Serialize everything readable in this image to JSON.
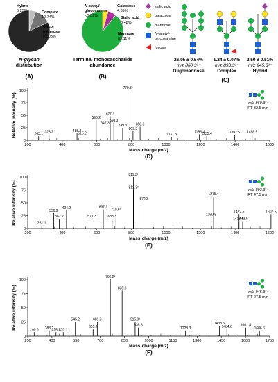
{
  "palette": {
    "glcnac": "#1f5fd6",
    "mannose": "#22b14c",
    "galactose": "#ffe11a",
    "sialic": "#a23aa5",
    "fucose": "#e02020",
    "trace": "#000000"
  },
  "pie_a": {
    "label": "(A)",
    "caption_line1": "N-glycan",
    "caption_line2": "distribution",
    "slices": [
      {
        "name": "Hybrid",
        "value": 5.23,
        "label": "Hybrid",
        "pct": "5.23%",
        "color": "#bdbdbd"
      },
      {
        "name": "Complex",
        "value": 12.74,
        "label": "Complex",
        "pct": "12.74%",
        "color": "#757575"
      },
      {
        "name": "Oligomannose",
        "value": 82.03,
        "label": "Oligo-",
        "label2": "mannose",
        "pct": "82.03%",
        "color": "#262626"
      }
    ]
  },
  "pie_b": {
    "label": "(B)",
    "caption_line1": "Terminal monosaccharide",
    "caption_line2": "abundance",
    "slices": [
      {
        "name": "Mannose",
        "value": 89.11,
        "label": "Mannose",
        "pct": "89.11%",
        "color": "#1fae3e"
      },
      {
        "name": "Galactose",
        "value": 4.39,
        "label": "Galactose",
        "pct": "4.39%",
        "color": "#ffe11a"
      },
      {
        "name": "Sialic acid",
        "value": 6.48,
        "label": "Sialic acid",
        "pct": "6.48%",
        "color": "#b02aa0"
      },
      {
        "name": "N-acetylglucosamine",
        "value": 0.01,
        "label": "N-acetyl-",
        "label2": "glucosamine",
        "pct": "<0.01%",
        "color": "#1f5fd6"
      }
    ]
  },
  "legend": {
    "items": [
      {
        "name": "sialic acid",
        "shape": "diamond",
        "color": "#a23aa5"
      },
      {
        "name": "galactose",
        "shape": "circle",
        "color": "#ffe11a"
      },
      {
        "name": "mannose",
        "shape": "circle",
        "color": "#22b14c"
      },
      {
        "name": "N-acetyl-",
        "name2": "glucosamine",
        "shape": "square",
        "color": "#1f5fd6"
      },
      {
        "name": "fucose",
        "shape": "triangle",
        "color": "#e02020"
      }
    ]
  },
  "panel_c": {
    "label": "(C)",
    "types": [
      {
        "pct": "26.05 ± 0.54%",
        "mz": "m/z 860.3³⁻",
        "name": "Oligomannose"
      },
      {
        "pct": "1.24 ± 0.07%",
        "mz": "m/z 893.3³⁻",
        "name": "Complex"
      },
      {
        "pct": "2.50 ± 0.51%",
        "mz": "m/z 945.3³⁻",
        "name": "Hybrid"
      }
    ]
  },
  "chart_data": [
    {
      "type": "line",
      "panel": "(D)",
      "xlabel": "Mass:charge (m/z)",
      "ylabel": "Relative intensity (%)",
      "xlim": [
        200,
        1600
      ],
      "ylim": [
        0,
        100
      ],
      "xticks": [
        200,
        400,
        600,
        800,
        1000,
        1200,
        1400,
        1600
      ],
      "yticks": [
        0,
        25,
        50,
        75,
        100
      ],
      "precursor": "m/z 860.3³⁻",
      "rt": "RT 32.5 min",
      "peaks": [
        {
          "x": 263.1,
          "y": 8,
          "label": "263.1"
        },
        {
          "x": 323.2,
          "y": 12,
          "label": "323.2"
        },
        {
          "x": 485.2,
          "y": 14,
          "label": "485.2"
        },
        {
          "x": 515.2,
          "y": 9,
          "label": "515.2"
        },
        {
          "x": 596.2,
          "y": 40,
          "label": "596.2"
        },
        {
          "x": 647.3,
          "y": 30,
          "label": "647.3"
        },
        {
          "x": 677.3,
          "y": 48,
          "label": "677.3"
        },
        {
          "x": 698.3,
          "y": 35,
          "label": "698.3"
        },
        {
          "x": 749.3,
          "y": 25,
          "label": "749.3"
        },
        {
          "x": 779.3,
          "y": 100,
          "label": "779.3²"
        },
        {
          "x": 809.3,
          "y": 18,
          "label": "809.3"
        },
        {
          "x": 850.3,
          "y": 27,
          "label": "850.3"
        },
        {
          "x": 1031.3,
          "y": 7,
          "label": "1031.3"
        },
        {
          "x": 1193.4,
          "y": 12,
          "label": "1193.4"
        },
        {
          "x": 1235.4,
          "y": 8,
          "label": "1235.4"
        },
        {
          "x": 1397.5,
          "y": 11,
          "label": "1397.5"
        },
        {
          "x": 1498.5,
          "y": 12,
          "label": "1498.5"
        }
      ]
    },
    {
      "type": "line",
      "panel": "(E)",
      "xlabel": "Mass:charge (m/z)",
      "ylabel": "Relative intensity (%)",
      "xlim": [
        200,
        1600
      ],
      "ylim": [
        0,
        100
      ],
      "xticks": [
        200,
        400,
        600,
        800,
        1000,
        1200,
        1400,
        1600
      ],
      "yticks": [
        0,
        25,
        50,
        75,
        100
      ],
      "precursor": "m/z 893.3³⁻",
      "rt": "RT 47.5 min",
      "peaks": [
        {
          "x": 281.1,
          "y": 6,
          "label": "281.1"
        },
        {
          "x": 350.2,
          "y": 30,
          "label": "350.2"
        },
        {
          "x": 382.2,
          "y": 19,
          "label": "382.2"
        },
        {
          "x": 424.2,
          "y": 35,
          "label": "424.2"
        },
        {
          "x": 571.3,
          "y": 19,
          "label": "571.3"
        },
        {
          "x": 637.3,
          "y": 37,
          "label": "637.3"
        },
        {
          "x": 688.3,
          "y": 19,
          "label": "688.3"
        },
        {
          "x": 710.6,
          "y": 32,
          "label": "710.6²"
        },
        {
          "x": 811.3,
          "y": 100,
          "label": "811.3²"
        },
        {
          "x": 812.3,
          "y": 75,
          "label": "812.3²"
        },
        {
          "x": 872.3,
          "y": 53,
          "label": "872.3"
        },
        {
          "x": 1260.5,
          "y": 22,
          "label": "1260.5"
        },
        {
          "x": 1275.4,
          "y": 62,
          "label": "1275.4"
        },
        {
          "x": 1418.5,
          "y": 14,
          "label": "1418.5"
        },
        {
          "x": 1422.5,
          "y": 28,
          "label": "1422.5"
        },
        {
          "x": 1443.5,
          "y": 14,
          "label": "1443.5"
        },
        {
          "x": 1607.5,
          "y": 28,
          "label": "1607.5"
        }
      ]
    },
    {
      "type": "line",
      "panel": "(F)",
      "xlabel": "Mass:charge (m/z)",
      "ylabel": "Relative intensity (%)",
      "xlim": [
        250,
        1750
      ],
      "ylim": [
        0,
        100
      ],
      "xticks": [
        250,
        400,
        550,
        700,
        850,
        1000,
        1150,
        1300,
        1450,
        1600,
        1750
      ],
      "yticks": [
        0,
        25,
        50,
        75,
        100
      ],
      "precursor": "m/z 945.3³⁻",
      "rt": "RT 27.5 min",
      "peaks": [
        {
          "x": 290.0,
          "y": 7,
          "label": "290.0"
        },
        {
          "x": 383.2,
          "y": 10,
          "label": "383.2"
        },
        {
          "x": 425.2,
          "y": 7,
          "label": "425.2"
        },
        {
          "x": 470.1,
          "y": 7,
          "label": "470.1"
        },
        {
          "x": 545.2,
          "y": 25,
          "label": "545.2"
        },
        {
          "x": 655.2,
          "y": 12,
          "label": "655.2"
        },
        {
          "x": 681.3,
          "y": 25,
          "label": "681.3"
        },
        {
          "x": 762.2,
          "y": 100,
          "label": "762.2²"
        },
        {
          "x": 835.3,
          "y": 80,
          "label": "835.3"
        },
        {
          "x": 915.9,
          "y": 25,
          "label": "915.9²"
        },
        {
          "x": 935.3,
          "y": 15,
          "label": "935.3"
        },
        {
          "x": 1228.3,
          "y": 10,
          "label": "1228.3"
        },
        {
          "x": 1438.5,
          "y": 18,
          "label": "1438.5"
        },
        {
          "x": 1484.6,
          "y": 12,
          "label": "1484.6"
        },
        {
          "x": 1601.4,
          "y": 15,
          "label": "1601.4"
        },
        {
          "x": 1686.6,
          "y": 10,
          "label": "1686.6"
        }
      ]
    }
  ]
}
